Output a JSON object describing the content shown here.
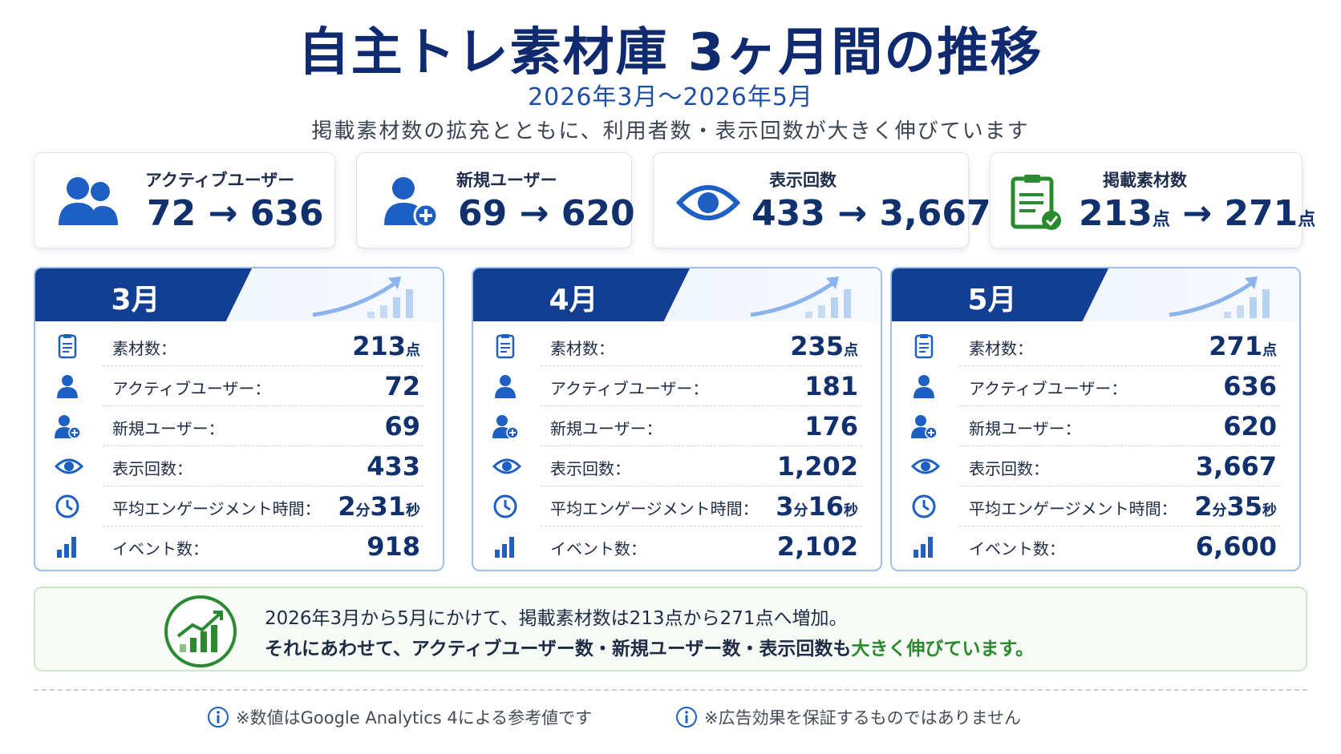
{
  "header": {
    "title": "自主トレ素材庫 3ヶ月間の推移",
    "period": "2026年3月〜2026年5月",
    "subtitle": "掲載素材数の拡充とともに、利用者数・表示回数が大きく伸びています"
  },
  "kpis": [
    {
      "icon": "users-icon",
      "label": "アクティブユーザー",
      "from": "72",
      "arrow": "→",
      "to": "636",
      "unit": ""
    },
    {
      "icon": "user-plus-icon",
      "label": "新規ユーザー",
      "from": "69",
      "arrow": "→",
      "to": "620",
      "unit": ""
    },
    {
      "icon": "eye-icon",
      "label": "表示回数",
      "from": "433",
      "arrow": "→",
      "to": "3,667",
      "unit": ""
    },
    {
      "icon": "clipboard-check-icon",
      "label": "掲載素材数",
      "from": "213",
      "arrow": "→",
      "to": "271",
      "unit": "点"
    }
  ],
  "months": [
    {
      "name": "3月",
      "rows": [
        {
          "icon": "clipboard-icon",
          "label": "素材数：",
          "value": "213",
          "unit": "点"
        },
        {
          "icon": "user-icon",
          "label": "アクティブユーザー：",
          "value": "72"
        },
        {
          "icon": "user-plus-icon",
          "label": "新規ユーザー：",
          "value": "69"
        },
        {
          "icon": "eye-icon",
          "label": "表示回数：",
          "value": "433"
        },
        {
          "icon": "clock-icon",
          "label": "平均エンゲージメント時間：",
          "min": "2",
          "min_unit": "分",
          "sec": "31",
          "sec_unit": "秒"
        },
        {
          "icon": "bar-chart-icon",
          "label": "イベント数：",
          "value": "918"
        }
      ]
    },
    {
      "name": "4月",
      "rows": [
        {
          "icon": "clipboard-icon",
          "label": "素材数：",
          "value": "235",
          "unit": "点"
        },
        {
          "icon": "user-icon",
          "label": "アクティブユーザー：",
          "value": "181"
        },
        {
          "icon": "user-plus-icon",
          "label": "新規ユーザー：",
          "value": "176"
        },
        {
          "icon": "eye-icon",
          "label": "表示回数：",
          "value": "1,202"
        },
        {
          "icon": "clock-icon",
          "label": "平均エンゲージメント時間：",
          "min": "3",
          "min_unit": "分",
          "sec": "16",
          "sec_unit": "秒"
        },
        {
          "icon": "bar-chart-icon",
          "label": "イベント数：",
          "value": "2,102"
        }
      ]
    },
    {
      "name": "5月",
      "rows": [
        {
          "icon": "clipboard-icon",
          "label": "素材数：",
          "value": "271",
          "unit": "点"
        },
        {
          "icon": "user-icon",
          "label": "アクティブユーザー：",
          "value": "636"
        },
        {
          "icon": "user-plus-icon",
          "label": "新規ユーザー：",
          "value": "620"
        },
        {
          "icon": "eye-icon",
          "label": "表示回数：",
          "value": "3,667"
        },
        {
          "icon": "clock-icon",
          "label": "平均エンゲージメント時間：",
          "min": "2",
          "min_unit": "分",
          "sec": "35",
          "sec_unit": "秒"
        },
        {
          "icon": "bar-chart-icon",
          "label": "イベント数：",
          "value": "6,600"
        }
      ]
    }
  ],
  "summary": {
    "icon": "growth-chart-icon",
    "line1": "2026年3月から5月にかけて、掲載素材数は213点から271点へ増加。",
    "line2_prefix": "それにあわせて、アクティブユーザー数・新規ユーザー数・表示回数も",
    "line2_highlight": "大きく伸びています。"
  },
  "notes": [
    {
      "icon": "info-icon",
      "text": "※数値はGoogle Analytics 4による参考値です"
    },
    {
      "icon": "info-icon",
      "text": "※広告効果を保証するものではありません"
    }
  ],
  "colors": {
    "navy": "#0f2a6e",
    "blue": "#1d5fc2",
    "tab": "#123f94",
    "green": "#2a8a2f",
    "border": "#9dc0ef"
  }
}
